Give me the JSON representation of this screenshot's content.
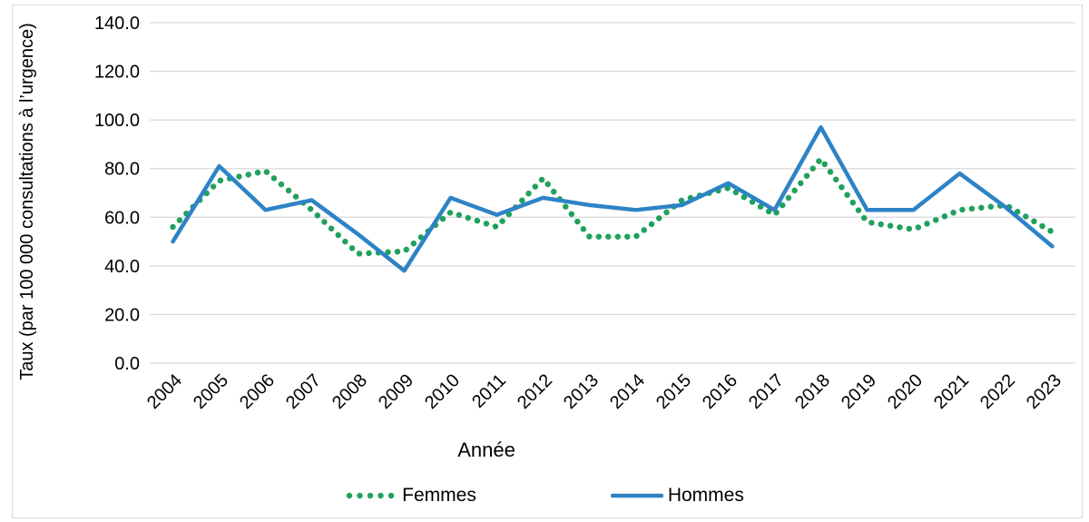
{
  "figure": {
    "y_axis_title": "Taux (par 100 000 consultations à l’urgence)",
    "x_axis_title": "Année"
  },
  "legend": {
    "femmes_label": "Femmes",
    "hommes_label": "Hommes"
  },
  "colors": {
    "femmes": "#20A15C",
    "hommes": "#2E83C5",
    "gridline": "#D9D9D9",
    "text": "#000000",
    "figure_border": "#D9D9D9"
  },
  "chart_data": {
    "type": "line",
    "title": "",
    "xlabel": "Année",
    "ylabel": "Taux (par 100 000 consultations à l’urgence)",
    "categories": [
      "2004",
      "2005",
      "2006",
      "2007",
      "2008",
      "2009",
      "2010",
      "2011",
      "2012",
      "2013",
      "2014",
      "2015",
      "2016",
      "2017",
      "2018",
      "2019",
      "2020",
      "2021",
      "2022",
      "2023"
    ],
    "series": [
      {
        "name": "Femmes",
        "style": "dotted",
        "color": "#20A15C",
        "values": [
          56,
          75,
          79,
          63,
          45,
          46,
          62,
          56,
          76,
          52,
          52,
          67,
          72,
          61,
          84,
          58,
          55,
          63,
          65,
          54
        ]
      },
      {
        "name": "Hommes",
        "style": "solid",
        "color": "#2E83C5",
        "values": [
          50,
          81,
          63,
          67,
          53,
          38,
          68,
          61,
          68,
          65,
          63,
          65,
          74,
          63,
          97,
          63,
          63,
          78,
          64,
          48
        ]
      }
    ],
    "ylim": [
      0,
      140
    ],
    "ytick_step": 20,
    "ytick_labels": [
      "0.0",
      "20.0",
      "40.0",
      "60.0",
      "80.0",
      "100.0",
      "120.0",
      "140.0"
    ],
    "grid": true,
    "legend_position": "bottom"
  }
}
